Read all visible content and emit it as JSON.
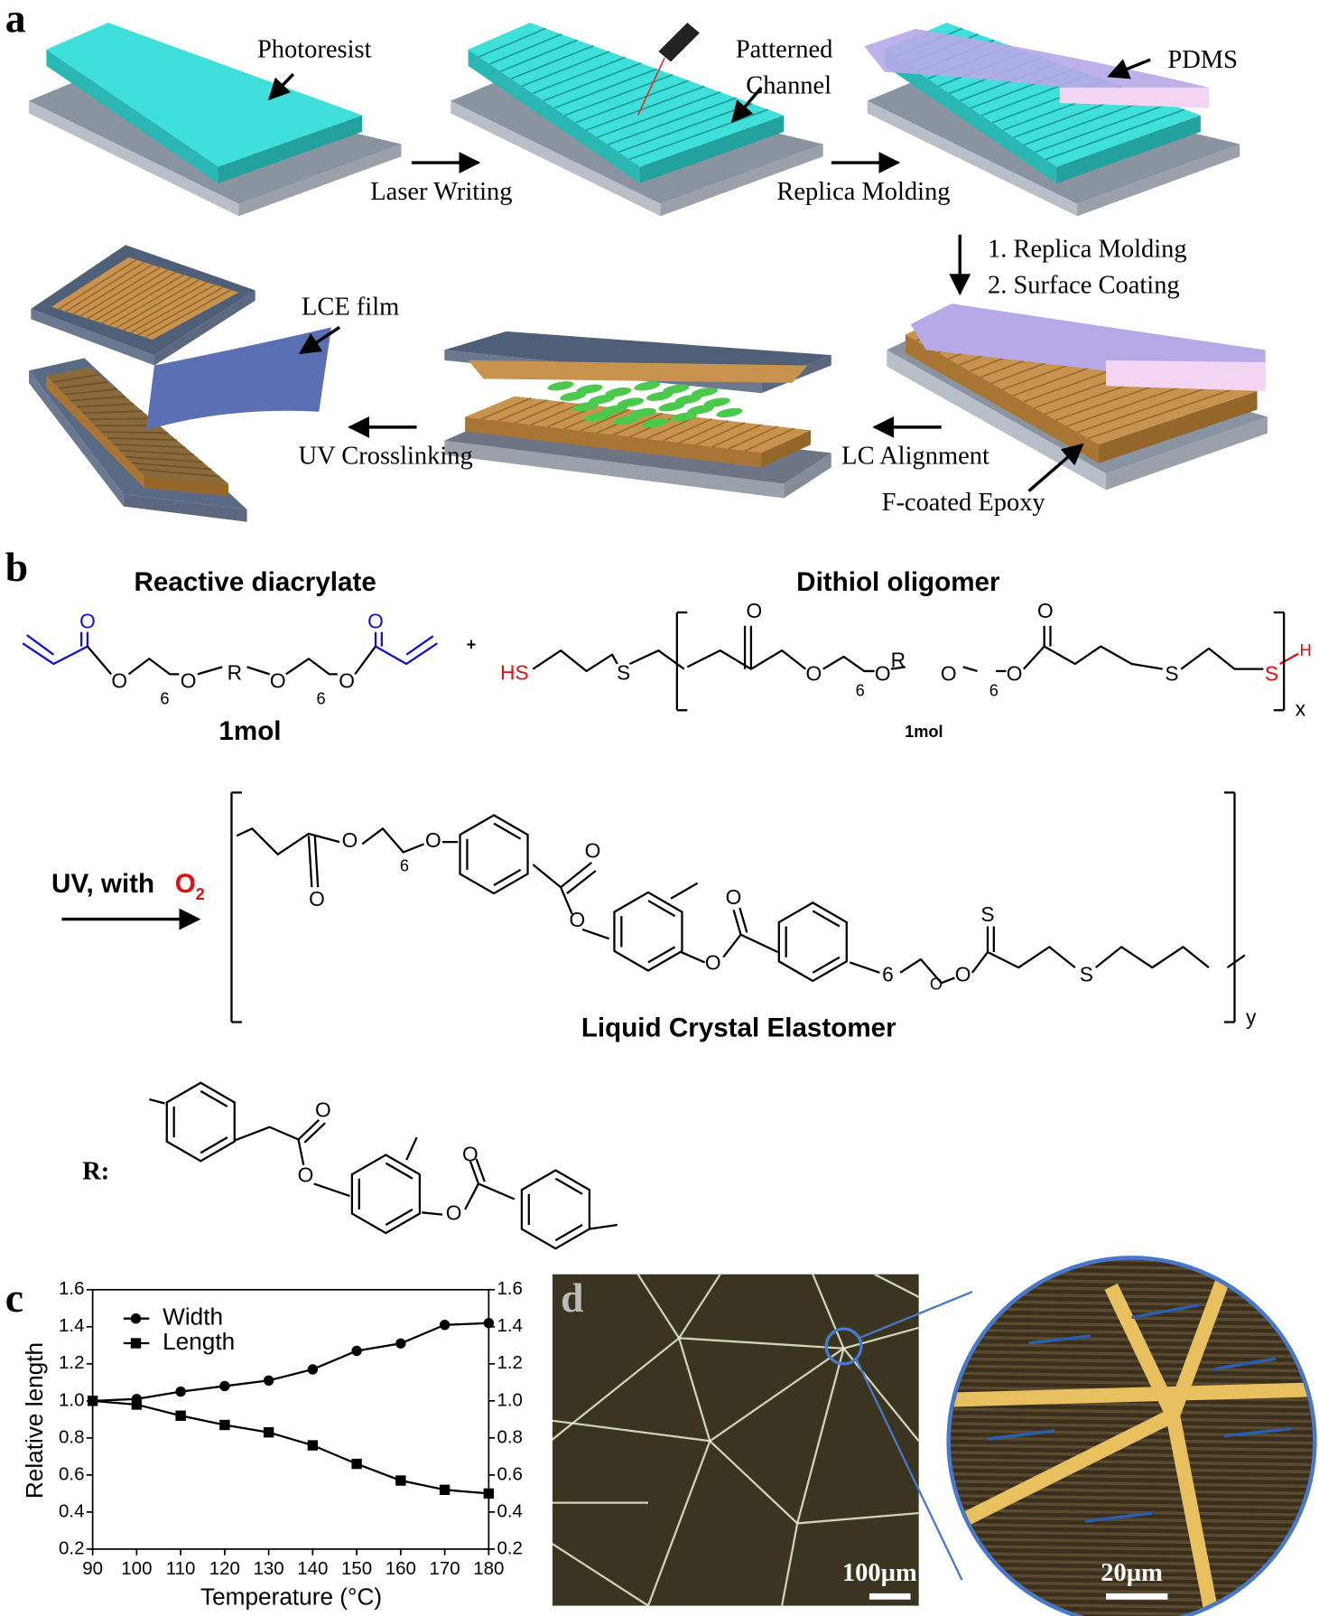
{
  "panel_labels": [
    "a",
    "b",
    "c",
    "d"
  ],
  "panel_a": {
    "photoresist": "Photoresist",
    "patterned_channel": [
      "Patterned",
      "Channel"
    ],
    "pdms": "PDMS",
    "laser_writing": "Laser Writing",
    "replica_molding": "Replica Molding",
    "subsequent_steps": [
      "1. Replica Molding",
      "2. Surface Coating"
    ],
    "lce_film": "LCE film",
    "uv_crosslinking": "UV Crosslinking",
    "lc_alignment": "LC Alignment",
    "f_coated_epoxy": "F-coated Epoxy"
  },
  "panel_b": {
    "plus": "+",
    "diacrylate": {
      "title": "Reactive diacrylate",
      "amount": "1mol",
      "atoms": [
        "O",
        "O",
        "6",
        "O",
        "R",
        "O",
        "6",
        "O",
        "O"
      ]
    },
    "dithiol": {
      "title": "Dithiol oligomer",
      "amount": "1mol",
      "atoms": [
        "HS",
        "S",
        "O",
        "O",
        "6",
        "O",
        "R",
        "O",
        "6",
        "O",
        "O",
        "S",
        "S",
        "H"
      ],
      "repeat": "x"
    },
    "condition": {
      "text": "UV, with",
      "reagent": "O",
      "reagent_subscript": "2"
    },
    "product": {
      "name": "Liquid Crystal Elastomer",
      "atoms": [
        "O",
        "6",
        "O",
        "O",
        "O",
        "O",
        "O",
        "O",
        "6",
        "O",
        "O",
        "S",
        "S"
      ],
      "repeat": "y"
    },
    "r_group": {
      "label": "R:",
      "atoms": [
        "O",
        "O",
        "O",
        "O"
      ]
    }
  },
  "chart_data": {
    "type": "line",
    "x_label": "Temperature (°C)",
    "y_label": "Relative length",
    "x": [
      90,
      100,
      110,
      120,
      130,
      140,
      150,
      160,
      170,
      180
    ],
    "series": [
      {
        "name": "Width",
        "color": "#000000",
        "marker": "circle",
        "values": [
          1.0,
          1.01,
          1.05,
          1.08,
          1.11,
          1.17,
          1.27,
          1.31,
          1.41,
          1.42
        ]
      },
      {
        "name": "Length",
        "color": "#000000",
        "marker": "square",
        "values": [
          1.0,
          0.98,
          0.92,
          0.87,
          0.83,
          0.76,
          0.66,
          0.57,
          0.52,
          0.5
        ]
      }
    ],
    "xlim": [
      90,
      180
    ],
    "xticks": [
      90,
      100,
      110,
      120,
      130,
      140,
      150,
      160,
      170,
      180
    ],
    "ylim": [
      0.2,
      1.6
    ],
    "yticks": [
      0.2,
      0.4,
      0.6,
      0.8,
      {
        "value": 1,
        "label": "1.0"
      },
      1.2,
      1.4,
      1.6
    ],
    "y2lim": [
      0.2,
      1.6
    ],
    "y2ticks": [
      0.2,
      0.4,
      0.6,
      0.8,
      {
        "value": 1,
        "label": "1.0"
      },
      1.2,
      1.4,
      1.6
    ],
    "legend": "upper left"
  },
  "panel_d": {
    "scale_bar_overview": "100µm",
    "scale_bar_zoom": "20µm"
  }
}
